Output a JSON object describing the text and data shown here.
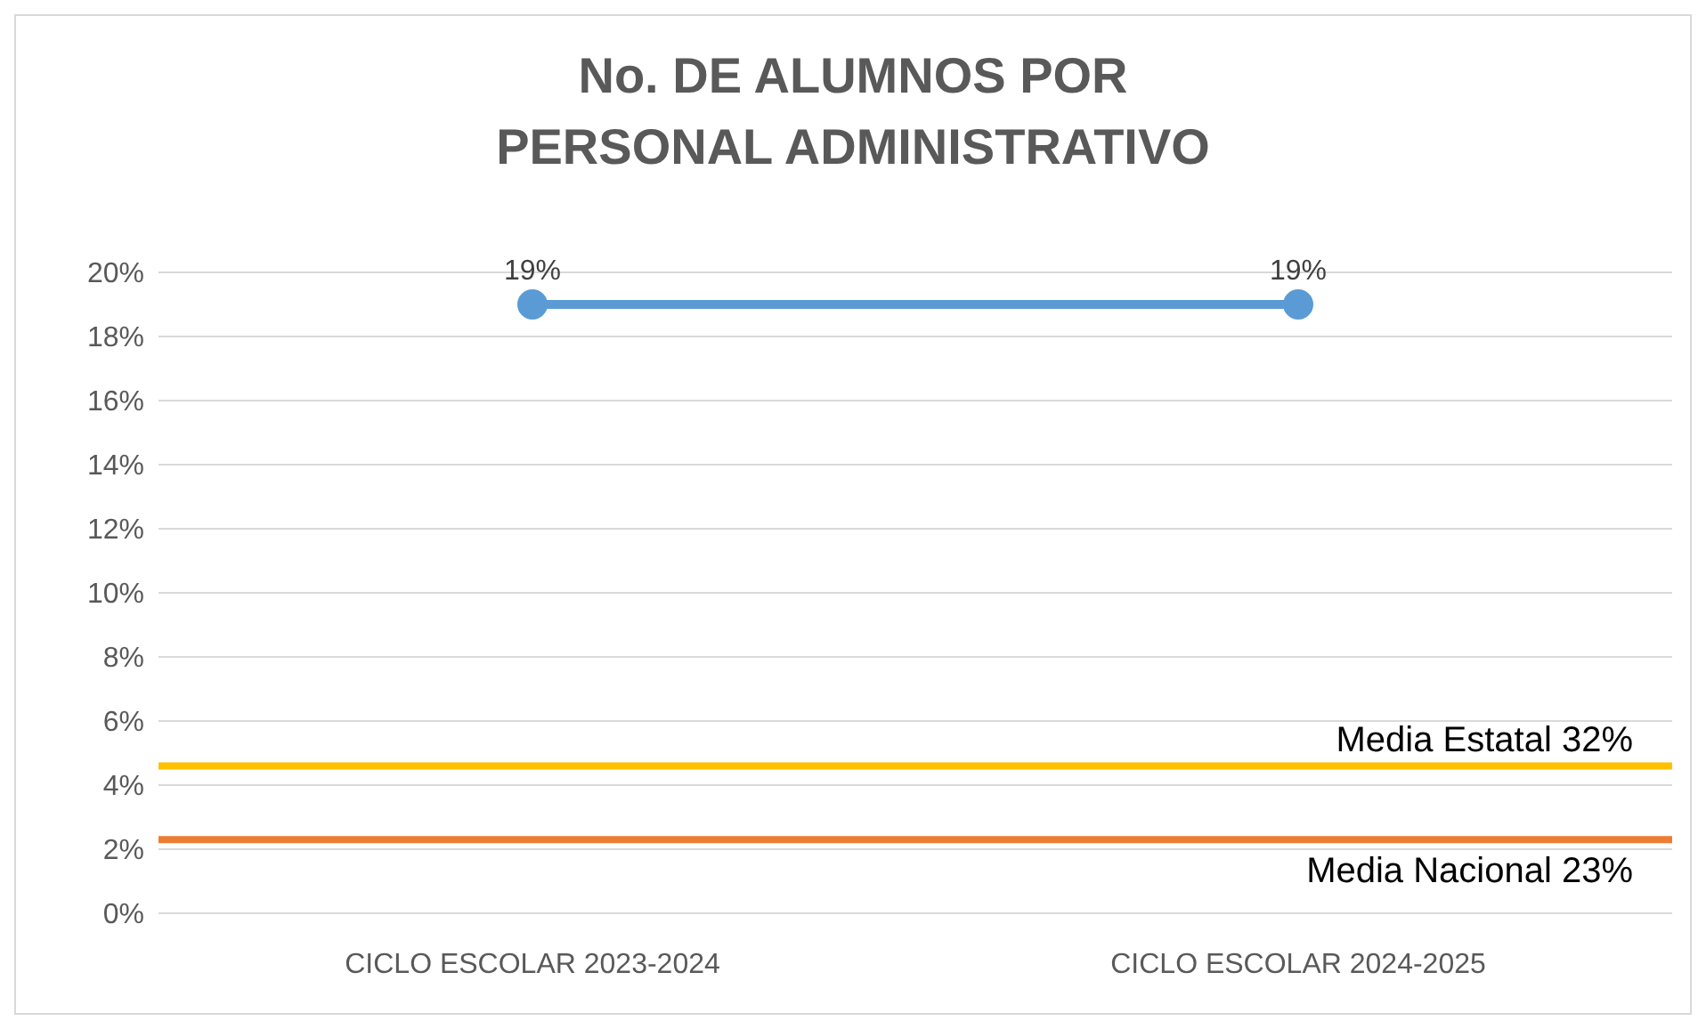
{
  "chart_data": {
    "type": "line",
    "title": "No. DE ALUMNOS POR PERSONAL ADMINISTRATIVO",
    "categories": [
      "CICLO ESCOLAR  2023-2024",
      "CICLO ESCOLAR 2024-2025"
    ],
    "series": [
      {
        "color": "#5b9bd5",
        "values": [
          19,
          19
        ],
        "value_labels": [
          "19%",
          "19%"
        ]
      }
    ],
    "ylim": [
      0,
      20
    ],
    "yticks": [
      {
        "value": 0,
        "label": "0%"
      },
      {
        "value": 2,
        "label": "2%"
      },
      {
        "value": 4,
        "label": "4%"
      },
      {
        "value": 6,
        "label": "6%"
      },
      {
        "value": 8,
        "label": "8%"
      },
      {
        "value": 10,
        "label": "10%"
      },
      {
        "value": 12,
        "label": "12%"
      },
      {
        "value": 14,
        "label": "14%"
      },
      {
        "value": 16,
        "label": "16%"
      },
      {
        "value": 18,
        "label": "18%"
      },
      {
        "value": 20,
        "label": "20%"
      }
    ],
    "ref_lines": [
      {
        "axis": "y",
        "value": 4.6,
        "label": "Media Estatal 32%",
        "color": "#ffc000"
      },
      {
        "axis": "y",
        "value": 2.3,
        "label": "Media Nacional 23%",
        "color": "#ed7d31"
      }
    ],
    "grid": "y",
    "legend": false,
    "marker": "circle",
    "line_style": "solid"
  }
}
